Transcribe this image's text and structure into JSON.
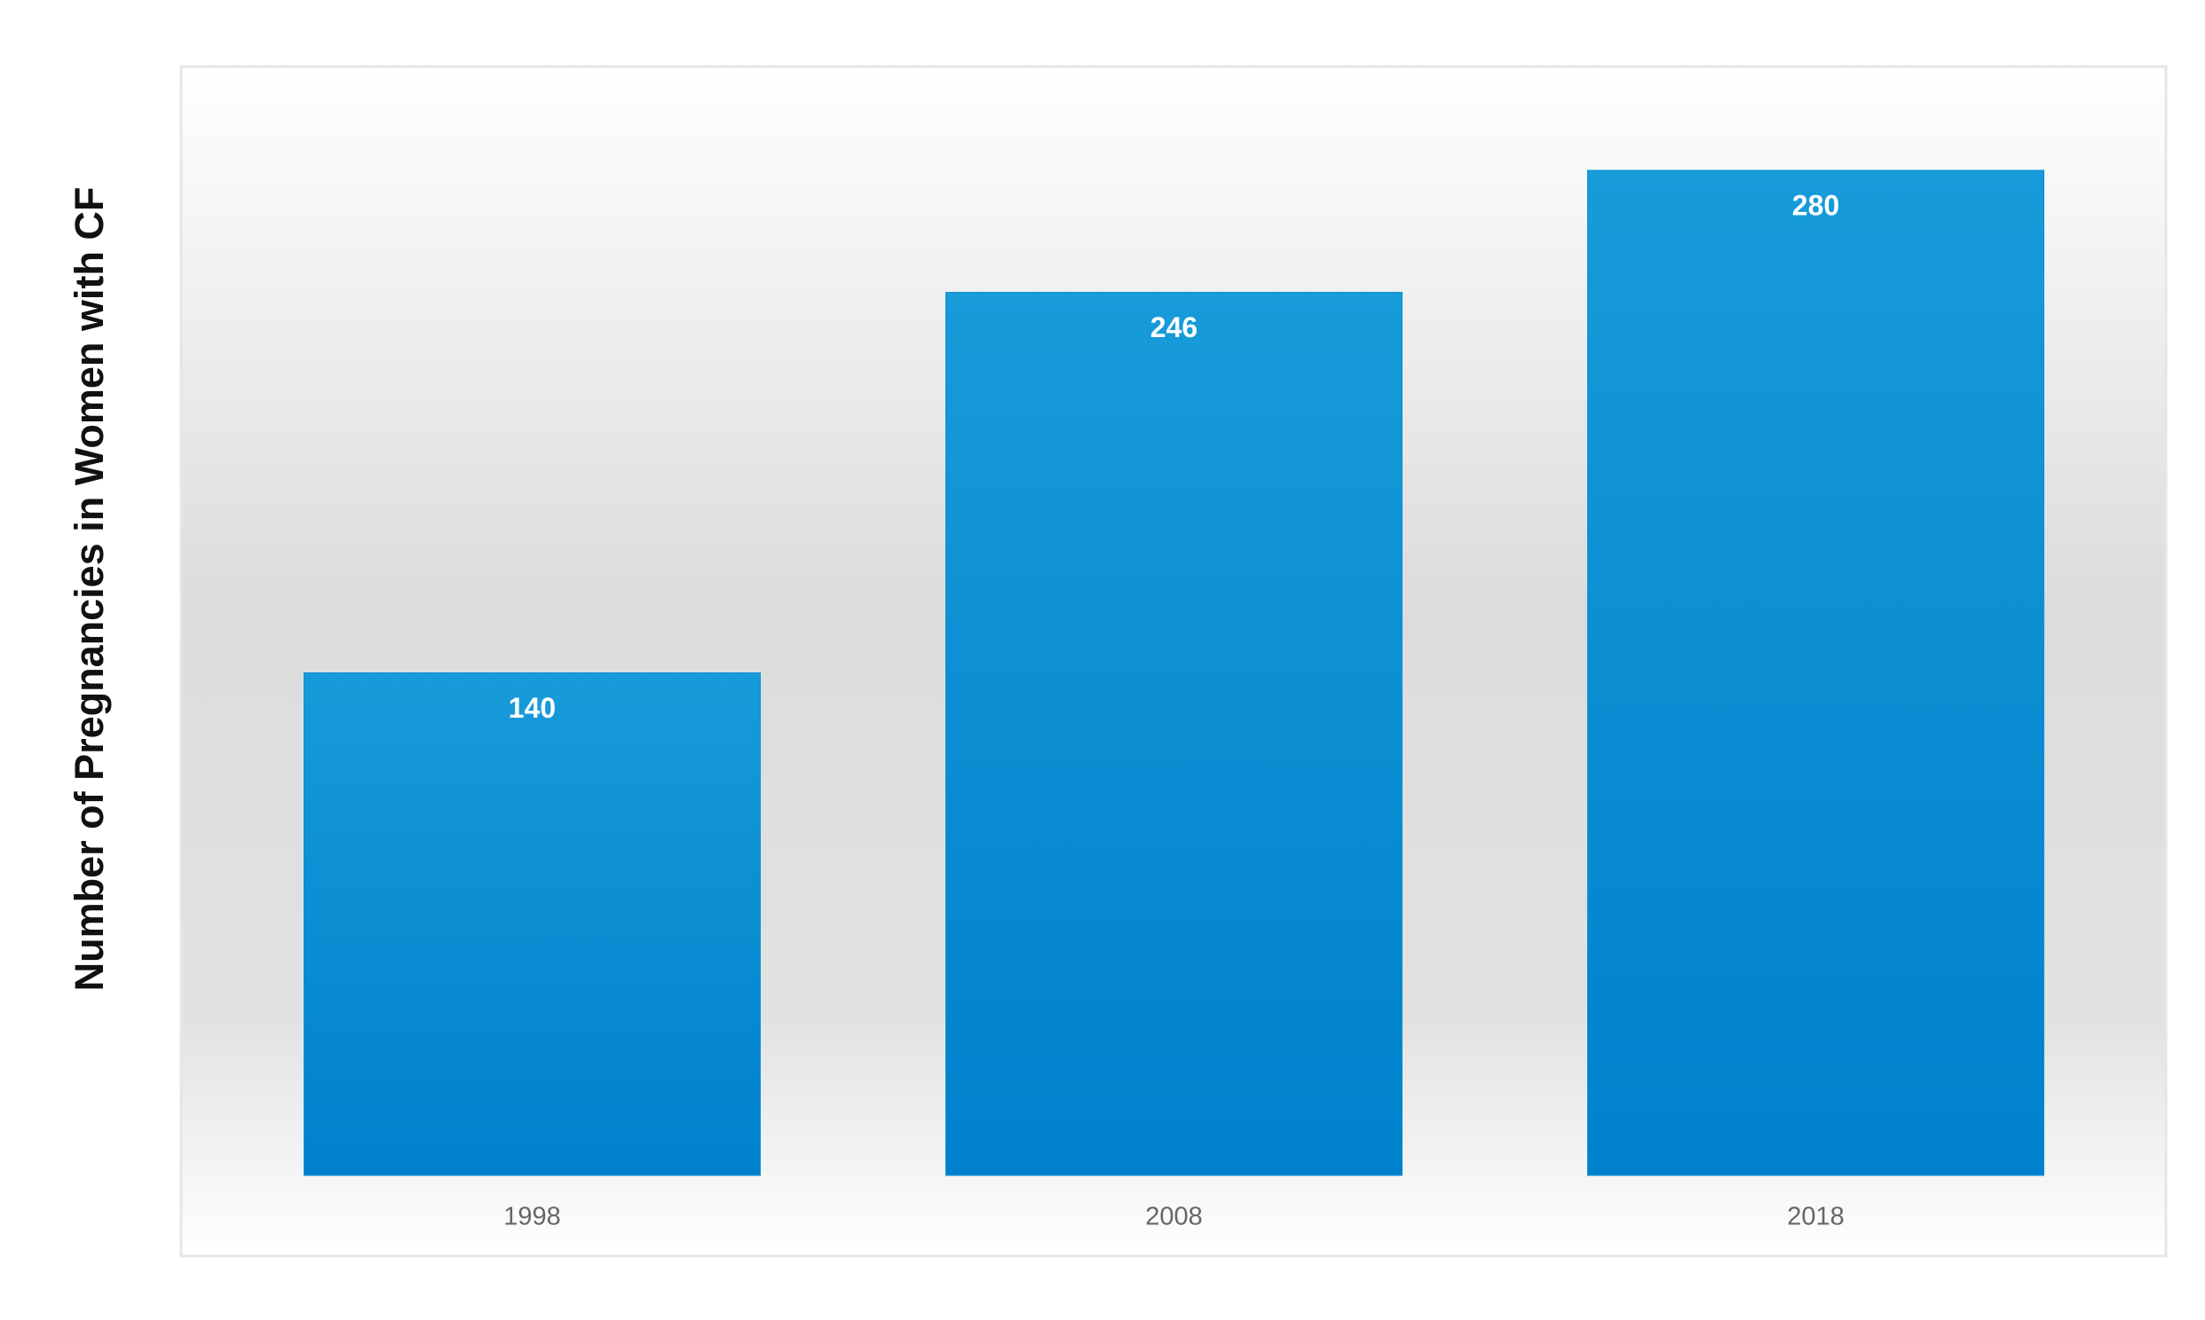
{
  "chart_data": {
    "type": "bar",
    "y_label": "Number of Pregnancies in Women with CF",
    "categories": [
      "1998",
      "2008",
      "2018"
    ],
    "values": [
      140,
      246,
      280
    ],
    "color": "#0a8fd6"
  }
}
